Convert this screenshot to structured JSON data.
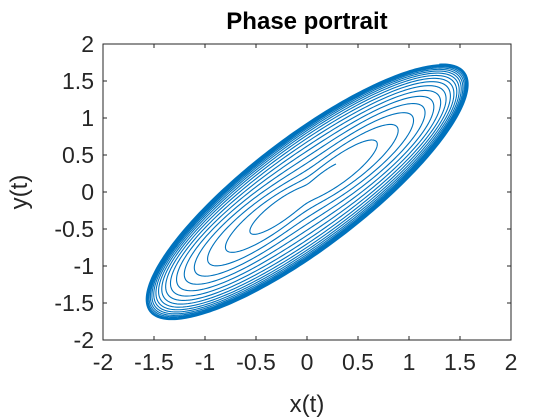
{
  "chart_data": {
    "type": "line",
    "title": "Phase portrait",
    "xlabel": "x(t)",
    "ylabel": "y(t)",
    "xlim": [
      -2,
      2
    ],
    "ylim": [
      -2,
      2
    ],
    "xticks": [
      -2,
      -1.5,
      -1,
      -0.5,
      0,
      0.5,
      1,
      1.5,
      2
    ],
    "yticks": [
      -2,
      -1.5,
      -1,
      -0.5,
      0,
      0.5,
      1,
      1.5,
      2
    ],
    "xtick_labels": [
      "-2",
      "-1.5",
      "-1",
      "-0.5",
      "0",
      "0.5",
      "1",
      "1.5",
      "2"
    ],
    "ytick_labels": [
      "-2",
      "-1.5",
      "-1",
      "-0.5",
      "0",
      "0.5",
      "1",
      "1.5",
      "2"
    ],
    "grid": false,
    "box": true,
    "colors": {
      "line": "#0072BD",
      "axes": "#262626"
    },
    "series": [
      {
        "description": "spiral trajectory winding outward from near the origin to a limit cycle",
        "x_range": [
          -1.62,
          1.62
        ],
        "y_range": [
          -1.63,
          1.63
        ],
        "limit_cycle": {
          "a": 1.62,
          "b": 1.15
        },
        "start": {
          "r": 0.18
        },
        "loops": 18
      }
    ]
  }
}
